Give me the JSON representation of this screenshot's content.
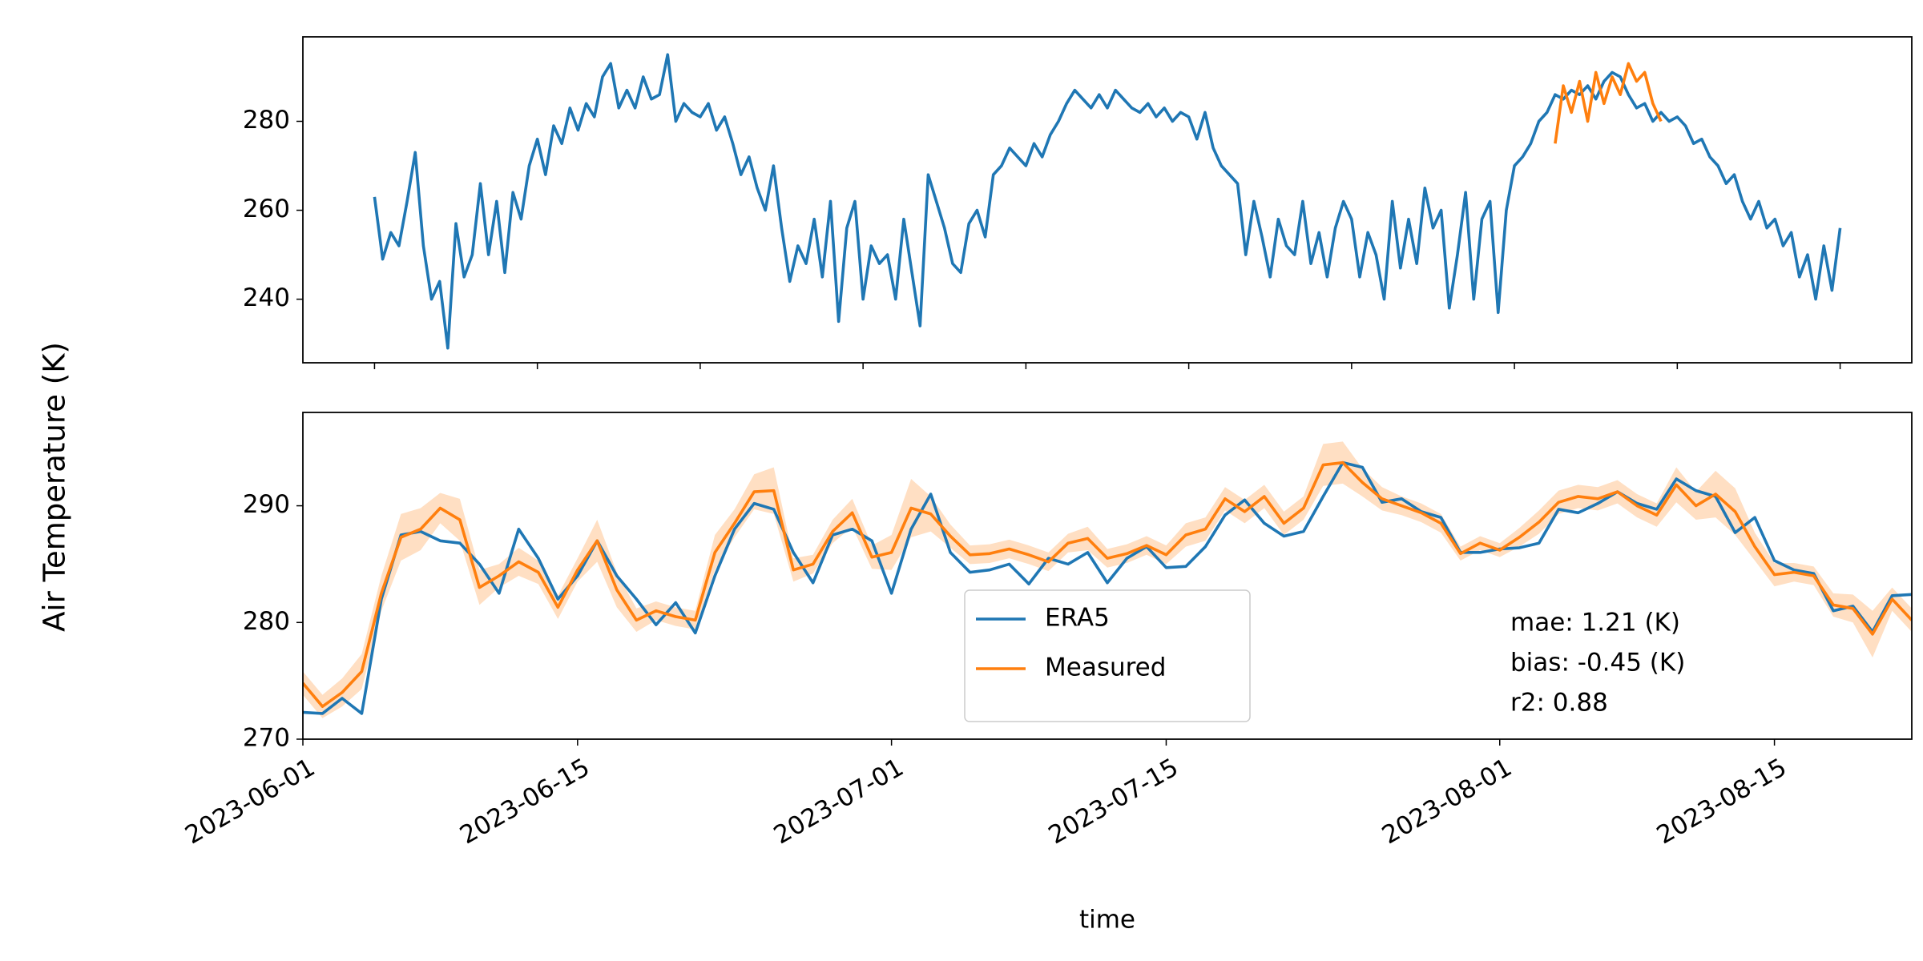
{
  "chart_data": [
    {
      "type": "line",
      "ylabel": "Air Temperature (K)",
      "x": [
        0,
        1,
        2,
        3,
        4,
        5,
        6,
        7,
        8,
        9,
        10,
        11,
        12,
        13,
        14,
        15,
        16,
        17,
        18,
        19,
        20,
        21,
        22,
        23,
        24,
        25,
        26,
        27,
        28,
        29,
        30,
        31,
        32,
        33,
        34,
        35,
        36,
        37,
        38,
        39,
        40,
        41,
        42,
        43,
        44,
        45,
        46,
        47,
        48,
        49,
        50,
        51,
        52,
        53,
        54,
        55,
        56,
        57,
        58,
        59,
        60,
        61,
        62,
        63,
        64,
        65,
        66,
        67,
        68,
        69,
        70,
        71,
        72,
        73,
        74,
        75,
        76,
        77,
        78,
        79,
        80,
        81,
        82,
        83,
        84,
        85,
        86,
        87,
        88,
        89,
        90,
        91,
        92,
        93,
        94,
        95,
        96,
        97,
        98,
        99,
        100,
        101,
        102,
        103,
        104,
        105,
        106,
        107,
        108,
        109,
        110,
        111,
        112,
        113,
        114,
        115,
        116,
        117,
        118,
        119,
        120,
        121,
        122,
        123,
        124,
        125,
        126,
        127,
        128,
        129,
        130,
        131,
        132,
        133,
        134,
        135,
        136,
        137,
        138,
        139,
        140,
        141,
        142,
        143,
        144,
        145,
        146,
        147,
        148,
        149,
        150,
        151,
        152,
        153,
        154,
        155,
        156,
        157,
        158,
        159,
        160,
        161,
        162,
        163,
        164,
        165,
        166,
        167,
        168,
        169,
        170,
        171,
        172,
        173,
        174,
        175,
        176,
        177,
        178,
        179,
        180
      ],
      "xlim": [
        -8.8,
        188.8
      ],
      "xticks": [
        0,
        20,
        40,
        60,
        80,
        100,
        120,
        140,
        160,
        180
      ],
      "ylim": [
        225.7,
        299
      ],
      "yticks": [
        240,
        260,
        280
      ],
      "series": [
        {
          "color": "#1f77b4",
          "values": [
            263,
            249,
            255,
            252,
            262,
            273,
            252,
            240,
            244,
            229,
            257,
            245,
            250,
            266,
            250,
            262,
            246,
            264,
            258,
            270,
            276,
            268,
            279,
            275,
            283,
            278,
            284,
            281,
            290,
            293,
            283,
            287,
            283,
            290,
            285,
            286,
            295,
            280,
            284,
            282,
            281,
            284,
            278,
            281,
            275,
            268,
            272,
            265,
            260,
            270,
            256,
            244,
            252,
            248,
            258,
            245,
            262,
            235,
            256,
            262,
            240,
            252,
            248,
            250,
            240,
            258,
            246,
            234,
            268,
            262,
            256,
            248,
            246,
            257,
            260,
            254,
            268,
            270,
            274,
            272,
            270,
            275,
            272,
            277,
            280,
            284,
            287,
            285,
            283,
            286,
            283,
            287,
            285,
            283,
            282,
            284,
            281,
            283,
            280,
            282,
            281,
            276,
            282,
            274,
            270,
            268,
            266,
            250,
            262,
            254,
            245,
            258,
            252,
            250,
            262,
            248,
            255,
            245,
            256,
            262,
            258,
            245,
            255,
            250,
            240,
            262,
            247,
            258,
            248,
            265,
            256,
            260,
            238,
            250,
            264,
            240,
            258,
            262,
            237,
            260,
            270,
            272,
            275,
            280,
            282,
            286,
            285,
            287,
            286,
            288,
            285,
            289,
            291,
            290,
            286,
            283,
            284,
            280,
            282,
            280,
            281,
            279,
            275,
            276,
            272,
            270,
            266,
            268,
            262,
            258,
            262,
            256,
            258,
            252,
            255,
            245,
            250,
            240,
            252,
            242,
            256
          ]
        },
        {
          "color": "#ff7f0e",
          "x": [
            145,
            146,
            147,
            148,
            149,
            150,
            151,
            152,
            153,
            154,
            155,
            156,
            157,
            158
          ],
          "values": [
            275,
            288,
            282,
            289,
            280,
            291,
            284,
            290,
            286,
            293,
            289,
            291,
            284,
            280
          ]
        }
      ]
    },
    {
      "type": "line",
      "xlabel": "time",
      "x": [
        "2023-06-01",
        "2023-06-02",
        "2023-06-03",
        "2023-06-04",
        "2023-06-05",
        "2023-06-06",
        "2023-06-07",
        "2023-06-08",
        "2023-06-09",
        "2023-06-10",
        "2023-06-11",
        "2023-06-12",
        "2023-06-13",
        "2023-06-14",
        "2023-06-15",
        "2023-06-16",
        "2023-06-17",
        "2023-06-18",
        "2023-06-19",
        "2023-06-20",
        "2023-06-21",
        "2023-06-22",
        "2023-06-23",
        "2023-06-24",
        "2023-06-25",
        "2023-06-26",
        "2023-06-27",
        "2023-06-28",
        "2023-06-29",
        "2023-06-30",
        "2023-07-01",
        "2023-07-02",
        "2023-07-03",
        "2023-07-04",
        "2023-07-05",
        "2023-07-06",
        "2023-07-07",
        "2023-07-08",
        "2023-07-09",
        "2023-07-10",
        "2023-07-11",
        "2023-07-12",
        "2023-07-13",
        "2023-07-14",
        "2023-07-15",
        "2023-07-16",
        "2023-07-17",
        "2023-07-18",
        "2023-07-19",
        "2023-07-20",
        "2023-07-21",
        "2023-07-22",
        "2023-07-23",
        "2023-07-24",
        "2023-07-25",
        "2023-07-26",
        "2023-07-27",
        "2023-07-28",
        "2023-07-29",
        "2023-07-30",
        "2023-07-31",
        "2023-08-01",
        "2023-08-02",
        "2023-08-03",
        "2023-08-04",
        "2023-08-05",
        "2023-08-06",
        "2023-08-07",
        "2023-08-08",
        "2023-08-09",
        "2023-08-10",
        "2023-08-11",
        "2023-08-12",
        "2023-08-13",
        "2023-08-14",
        "2023-08-15",
        "2023-08-16",
        "2023-08-17",
        "2023-08-18",
        "2023-08-19",
        "2023-08-20",
        "2023-08-21",
        "2023-08-22"
      ],
      "xlim": [
        "2023-06-01",
        "2023-08-22"
      ],
      "xticks": [
        "2023-06-01",
        "2023-06-15",
        "2023-07-01",
        "2023-07-15",
        "2023-08-01",
        "2023-08-15"
      ],
      "ylim": [
        270,
        298
      ],
      "yticks": [
        270,
        280,
        290
      ],
      "legend": "lower center",
      "series": [
        {
          "name": "ERA5",
          "color": "#1f77b4",
          "values": [
            272.3,
            272.2,
            273.5,
            272.2,
            282,
            287.5,
            287.8,
            287,
            286.8,
            285,
            282.5,
            288,
            285.5,
            282,
            284,
            287,
            284,
            282,
            279.8,
            281.7,
            279.1,
            284,
            288,
            290.2,
            289.7,
            286,
            283.4,
            287.5,
            288,
            287,
            282.5,
            288,
            291,
            286,
            284.3,
            284.5,
            285,
            283.3,
            285.5,
            285,
            286,
            283.4,
            285.5,
            286.5,
            284.7,
            284.8,
            286.5,
            289.2,
            290.5,
            288.5,
            287.4,
            287.8,
            290.8,
            293.7,
            293.3,
            290.3,
            290.6,
            289.5,
            289,
            286,
            286,
            286.3,
            286.4,
            286.8,
            289.7,
            289.4,
            290.2,
            291.2,
            290.2,
            289.7,
            292.3,
            291.3,
            290.8,
            287.7,
            289,
            285.3,
            284.5,
            284.2,
            281,
            281.4,
            279.2,
            282.3,
            282.4
          ]
        },
        {
          "name": "Measured",
          "color": "#ff7f0e",
          "values": [
            274.8,
            272.8,
            274,
            275.8,
            282.5,
            287.3,
            288,
            289.8,
            288.8,
            283,
            284,
            285.2,
            284.3,
            281.3,
            284.5,
            287,
            282.8,
            280.2,
            281,
            280.5,
            280.2,
            286,
            288.5,
            291.2,
            291.3,
            284.5,
            285,
            287.8,
            289.4,
            285.6,
            286,
            289.8,
            289.3,
            287.4,
            285.8,
            285.9,
            286.3,
            285.8,
            285.2,
            286.8,
            287.2,
            285.5,
            285.9,
            286.6,
            285.8,
            287.5,
            288,
            290.6,
            289.5,
            290.8,
            288.5,
            289.8,
            293.5,
            293.7,
            292,
            290.6,
            290,
            289.4,
            288.5,
            285.9,
            286.8,
            286.2,
            287.3,
            288.6,
            290.3,
            290.8,
            290.6,
            291.2,
            290,
            289.2,
            291.8,
            290,
            291,
            289.5,
            286.5,
            284.1,
            284.3,
            284,
            281.5,
            281.2,
            279,
            282,
            280.2
          ],
          "error": [
            1,
            1,
            1.2,
            1.5,
            1.5,
            2,
            1.8,
            1.3,
            1.8,
            1.5,
            1,
            1.2,
            1,
            1,
            1,
            1.8,
            1.5,
            1,
            0.8,
            0.8,
            0.8,
            1.5,
            1.2,
            1.5,
            2,
            1,
            0.8,
            1,
            1.2,
            1,
            1.5,
            2.5,
            1.5,
            1,
            0.8,
            0.8,
            0.8,
            0.8,
            0.8,
            0.8,
            1,
            0.8,
            0.8,
            0.8,
            0.8,
            1,
            1,
            1,
            1,
            1,
            1,
            1,
            1.8,
            1.8,
            1.2,
            1,
            0.8,
            0.8,
            0.8,
            0.6,
            0.6,
            0.6,
            0.8,
            1,
            1,
            1,
            1,
            1,
            1,
            1,
            1.5,
            1.2,
            2,
            2,
            1.2,
            1,
            0.8,
            0.8,
            1,
            1.2,
            2,
            1,
            1
          ]
        }
      ],
      "annotations": [
        "mae: 1.21 (K)",
        "bias: -0.45 (K)",
        "r2: 0.88"
      ]
    }
  ]
}
